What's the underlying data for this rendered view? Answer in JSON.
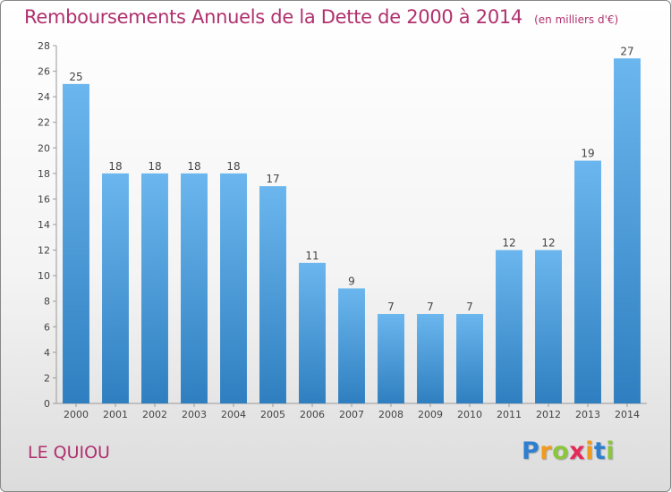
{
  "header": {
    "title": "Remboursements Annuels de la Dette de 2000 à 2014",
    "subtitle": "(en milliers d'€)"
  },
  "commune": "LE QUIOU",
  "logo": {
    "letters": [
      "P",
      "r",
      "o",
      "x",
      "i",
      "t",
      "i"
    ],
    "colors": [
      "#2f7fd0",
      "#f29a1e",
      "#8cc63f",
      "#e52a5a",
      "#f29a1e",
      "#2f7fd0",
      "#8cc63f"
    ]
  },
  "colors": {
    "bar_light": "#6bb6ee",
    "bar_dark": "#2f7fc0",
    "text": "#b0306e"
  },
  "chart_data": {
    "type": "bar",
    "categories": [
      "2000",
      "2001",
      "2002",
      "2003",
      "2004",
      "2005",
      "2006",
      "2007",
      "2008",
      "2009",
      "2010",
      "2011",
      "2012",
      "2013",
      "2014"
    ],
    "values": [
      25,
      18,
      18,
      18,
      18,
      17,
      11,
      9,
      7,
      7,
      7,
      12,
      12,
      19,
      27
    ],
    "title": "Remboursements Annuels de la Dette de 2000 à 2014",
    "subtitle": "(en milliers d'€)",
    "ylim": [
      0,
      28
    ],
    "yticks": [
      0,
      2,
      4,
      6,
      8,
      10,
      12,
      14,
      16,
      18,
      20,
      22,
      24,
      26,
      28
    ],
    "grid": false,
    "data_labels": true
  }
}
